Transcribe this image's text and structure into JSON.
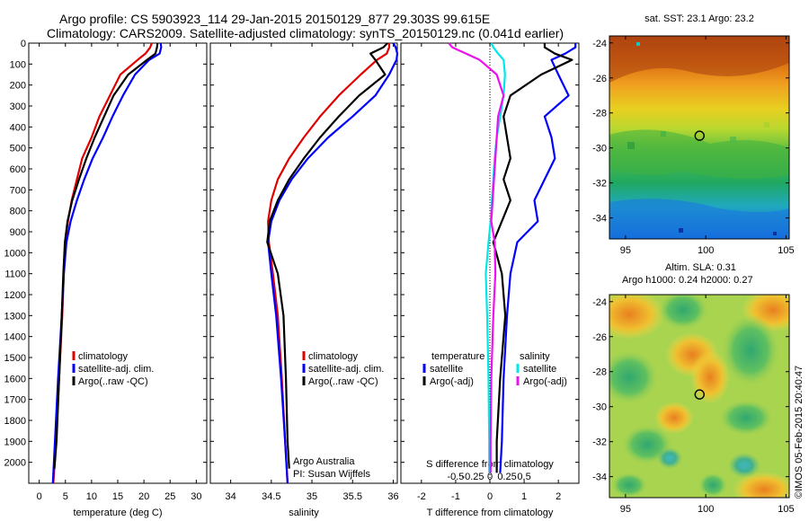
{
  "title": {
    "line1": "Argo profile: CS 5903923_114 29-Jan-2015 20150129_877 29.303S 99.615E",
    "line2": "Climatology: CARS2009. Satellite-adjusted climatology: synTS_20150129.nc (0.041d earlier)"
  },
  "colors": {
    "climatology": "#e00000",
    "satellite": "#0000ff",
    "argo": "#000000",
    "salinity_satellite": "#00e8e8",
    "salinity_argo": "#ee10ee"
  },
  "depth_axis": {
    "ylim": [
      0,
      2100
    ],
    "ticks": [
      0,
      100,
      200,
      300,
      400,
      500,
      600,
      700,
      800,
      900,
      1000,
      1100,
      1200,
      1300,
      1400,
      1500,
      1600,
      1700,
      1800,
      1900,
      2000
    ]
  },
  "chart_data": [
    {
      "type": "line",
      "name": "temperature",
      "xlabel": "temperature (deg C)",
      "xlim": [
        -2,
        32
      ],
      "xticks": [
        0,
        5,
        10,
        15,
        20,
        25,
        30
      ],
      "legend": [
        "climatology",
        "satellite-adj. clim.",
        "Argo(..raw -QC)"
      ],
      "series": [
        {
          "name": "climatology",
          "color_key": "climatology",
          "x": [
            21.5,
            21.2,
            20.3,
            18.8,
            15.5,
            13.5,
            11.5,
            10.0,
            8.2,
            7.2,
            6.2,
            5.5,
            5.0,
            4.7,
            4.4,
            3.8,
            3.2,
            2.7
          ],
          "y": [
            0,
            20,
            50,
            80,
            150,
            250,
            350,
            450,
            550,
            650,
            750,
            850,
            950,
            1100,
            1300,
            1600,
            1900,
            2100
          ]
        },
        {
          "name": "satellite-adj. clim.",
          "color_key": "satellite",
          "x": [
            23.2,
            23.3,
            23.0,
            21.0,
            18.3,
            16.0,
            14.0,
            12.2,
            10.2,
            8.6,
            7.2,
            6.0,
            5.2,
            4.7,
            4.3,
            3.6,
            3.0,
            2.6
          ],
          "y": [
            0,
            20,
            50,
            80,
            150,
            250,
            350,
            450,
            550,
            650,
            750,
            850,
            950,
            1100,
            1300,
            1600,
            1900,
            2100
          ]
        },
        {
          "name": "Argo(..raw -QC)",
          "color_key": "argo",
          "x": [
            22.6,
            22.5,
            22.2,
            20.6,
            17.0,
            14.2,
            12.4,
            10.6,
            9.0,
            7.6,
            6.3,
            5.4,
            4.9,
            4.6,
            4.3,
            3.8,
            3.3,
            2.9
          ],
          "y": [
            0,
            20,
            50,
            80,
            150,
            250,
            350,
            450,
            550,
            650,
            750,
            850,
            950,
            1100,
            1300,
            1600,
            1900,
            2030
          ]
        }
      ]
    },
    {
      "type": "line",
      "name": "salinity",
      "xlabel": "salinity",
      "xlim": [
        33.75,
        36.05
      ],
      "xticks": [
        34,
        34.5,
        35,
        35.5,
        36
      ],
      "xtick_labels": [
        "34",
        "34.5",
        "35",
        "35.5",
        "36"
      ],
      "legend": [
        "climatology",
        "satellite-adj. clim.",
        "Argo(..raw -QC)"
      ],
      "annotation": [
        "Argo Australia",
        "PI: Susan Wijffels"
      ],
      "series": [
        {
          "name": "climatology",
          "color_key": "climatology",
          "x": [
            35.95,
            35.95,
            35.92,
            35.8,
            35.6,
            35.33,
            35.1,
            34.9,
            34.72,
            34.58,
            34.5,
            34.46,
            34.47,
            34.52,
            34.58,
            34.63,
            34.67,
            34.7
          ],
          "y": [
            0,
            20,
            50,
            80,
            150,
            250,
            350,
            450,
            550,
            650,
            750,
            850,
            950,
            1100,
            1300,
            1600,
            1900,
            2100
          ]
        },
        {
          "name": "satellite-adj. clim.",
          "color_key": "satellite",
          "x": [
            36.0,
            36.03,
            36.05,
            36.04,
            35.95,
            35.78,
            35.5,
            35.2,
            34.95,
            34.75,
            34.6,
            34.5,
            34.46,
            34.5,
            34.56,
            34.62,
            34.67,
            34.7
          ],
          "y": [
            0,
            20,
            50,
            80,
            150,
            250,
            350,
            450,
            550,
            650,
            750,
            850,
            950,
            1100,
            1300,
            1600,
            1900,
            2100
          ]
        },
        {
          "name": "Argo(..raw -QC)",
          "color_key": "argo",
          "x": [
            35.93,
            35.88,
            35.72,
            35.78,
            35.9,
            35.58,
            35.33,
            35.1,
            34.9,
            34.72,
            34.58,
            34.48,
            34.45,
            34.58,
            34.65,
            34.68,
            34.7,
            34.72
          ],
          "y": [
            0,
            20,
            50,
            80,
            150,
            250,
            350,
            450,
            550,
            650,
            750,
            850,
            950,
            1100,
            1300,
            1600,
            1900,
            2030
          ]
        }
      ]
    },
    {
      "type": "line",
      "name": "differences",
      "xlabel": "T difference from climatology",
      "xlim": [
        -2.6,
        2.6
      ],
      "xticks": [
        -2,
        -1,
        0,
        1,
        2
      ],
      "top_xlabel": "S difference from climatology",
      "top_xticks": [
        -0.5,
        -0.25,
        0,
        0.25,
        0.5
      ],
      "top_xtick_labels": [
        "-0.5",
        "-0.25",
        "0",
        "0.25",
        "0.5"
      ],
      "legend_temperature_title": "temperature",
      "legend_salinity_title": "salinity",
      "legend": [
        "satellite",
        "Argo(-adj)",
        "satellite",
        "Argo(-adj)"
      ],
      "series": [
        {
          "name": "temperature satellite",
          "color_key": "satellite",
          "x": [
            2.5,
            2.5,
            2.2,
            1.8,
            2.0,
            2.3,
            1.6,
            1.8,
            1.9,
            1.6,
            1.3,
            1.4,
            0.8,
            0.6,
            0.5,
            0.4,
            0.35,
            0.3
          ],
          "y": [
            0,
            20,
            50,
            80,
            150,
            250,
            350,
            450,
            550,
            650,
            750,
            850,
            950,
            1100,
            1300,
            1600,
            1900,
            2050
          ]
        },
        {
          "name": "temperature Argo(-adj)",
          "color_key": "argo",
          "x": [
            1.6,
            1.6,
            1.9,
            2.4,
            1.5,
            0.6,
            0.4,
            0.5,
            0.6,
            0.4,
            0.6,
            0.35,
            0.1,
            0.35,
            0.45,
            0.3,
            0.2,
            0.2
          ],
          "y": [
            0,
            20,
            50,
            80,
            150,
            250,
            350,
            450,
            550,
            650,
            750,
            850,
            950,
            1100,
            1300,
            1600,
            1900,
            2050
          ]
        },
        {
          "name": "salinity satellite",
          "color_key": "salinity_satellite",
          "x": [
            0.02,
            0.05,
            0.12,
            0.2,
            0.22,
            0.2,
            0.15,
            0.1,
            0.07,
            0.05,
            0.03,
            0.01,
            -0.02,
            -0.06,
            -0.04,
            -0.02,
            -0.01,
            -0.01
          ],
          "y": [
            0,
            20,
            50,
            80,
            150,
            250,
            350,
            450,
            550,
            650,
            750,
            850,
            950,
            1100,
            1300,
            1600,
            1900,
            2050
          ]
        },
        {
          "name": "salinity Argo(-adj)",
          "color_key": "salinity_argo",
          "x": [
            -0.6,
            -0.55,
            -0.35,
            -0.15,
            0.1,
            0.2,
            0.12,
            0.1,
            0.08,
            0.06,
            0.04,
            0.02,
            0.07,
            0.08,
            0.05,
            0.02,
            0.01,
            0.01
          ],
          "y": [
            0,
            20,
            50,
            80,
            150,
            250,
            350,
            450,
            550,
            650,
            750,
            850,
            950,
            1100,
            1300,
            1600,
            1900,
            2050
          ]
        }
      ]
    },
    {
      "type": "heatmap",
      "name": "sst_map",
      "title": "sat. SST: 23.1 Argo: 23.2",
      "xlim": [
        94,
        105.2
      ],
      "ylim": [
        -35.2,
        -23.6
      ],
      "xticks": [
        95,
        100,
        105
      ],
      "yticks": [
        -24,
        -26,
        -28,
        -30,
        -32,
        -34
      ],
      "marker": {
        "lon": 99.615,
        "lat": -29.303
      }
    },
    {
      "type": "heatmap",
      "name": "sla_map",
      "title_line1": "Altim. SLA: 0.31",
      "title_line2": "Argo h1000: 0.24 h2000: 0.27",
      "xlim": [
        94,
        105.2
      ],
      "ylim": [
        -35.2,
        -23.6
      ],
      "xticks": [
        95,
        100,
        105
      ],
      "yticks": [
        -24,
        -26,
        -28,
        -30,
        -32,
        -34
      ],
      "marker": {
        "lon": 99.615,
        "lat": -29.303
      }
    }
  ],
  "credit": "©IMOS 05-Feb-2015 20:40:47"
}
